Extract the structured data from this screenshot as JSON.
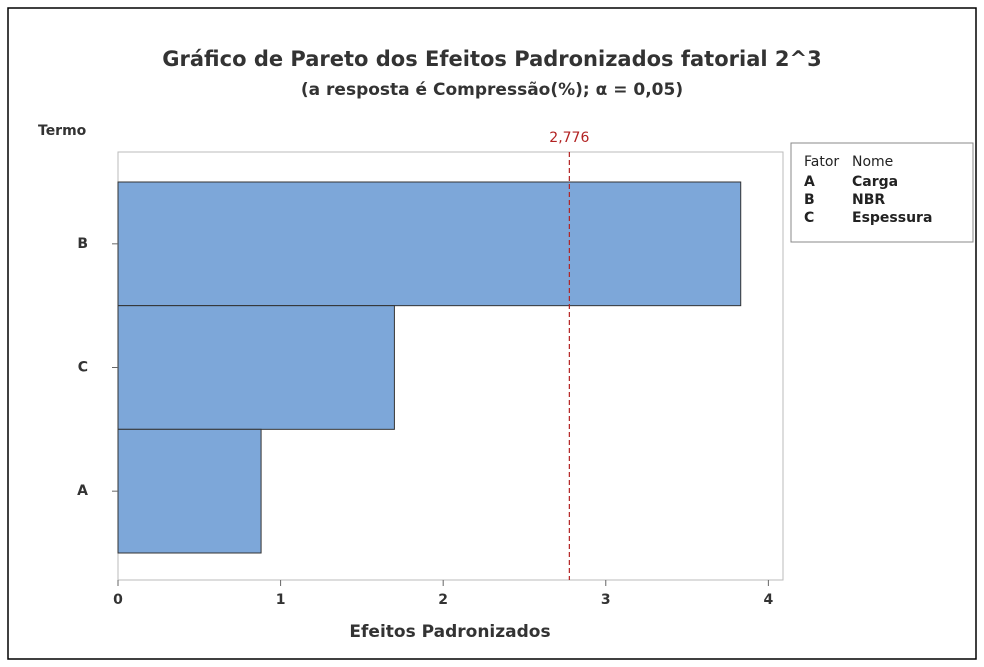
{
  "chart_data": {
    "type": "bar",
    "orientation": "horizontal",
    "title": "Gráfico de Pareto dos Efeitos Padronizados fatorial 2^3",
    "subtitle": "(a resposta é  Compressão(%); α = 0,05)",
    "y_label": "Termo",
    "x_label": "Efeitos Padronizados",
    "categories": [
      "B",
      "C",
      "A"
    ],
    "values": [
      3.83,
      1.7,
      0.88
    ],
    "color": "#7da7d9",
    "xlim": [
      0,
      4.09
    ],
    "xticks": [
      0,
      1,
      2,
      3,
      4
    ],
    "reference_line": {
      "value": 2.776,
      "label": "2,776",
      "color": "#b22222"
    },
    "legend_table": {
      "header": [
        "Fator",
        "Nome"
      ],
      "rows": [
        [
          "A",
          "Carga"
        ],
        [
          "B",
          "NBR"
        ],
        [
          "C",
          "Espessura"
        ]
      ]
    }
  }
}
